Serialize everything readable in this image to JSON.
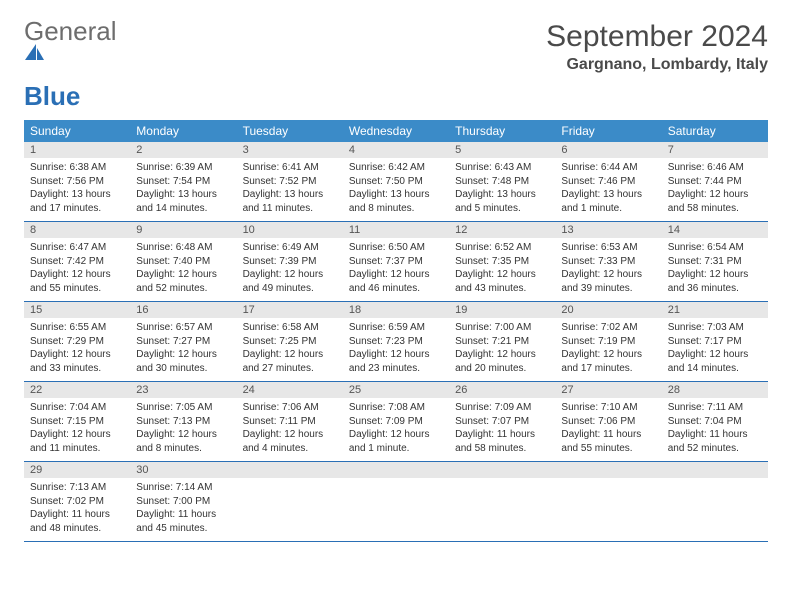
{
  "brand": {
    "part1": "General",
    "part2": "Blue"
  },
  "title": "September 2024",
  "location": "Gargnano, Lombardy, Italy",
  "colors": {
    "header_bar": "#3b8bc8",
    "week_border": "#2a6fb5",
    "daynum_bg": "#e7e7e7",
    "text": "#333333",
    "logo_gray": "#6d6d6d",
    "logo_blue": "#2a6fb5"
  },
  "daysOfWeek": [
    "Sunday",
    "Monday",
    "Tuesday",
    "Wednesday",
    "Thursday",
    "Friday",
    "Saturday"
  ],
  "weeks": [
    [
      {
        "num": "1",
        "sunrise": "Sunrise: 6:38 AM",
        "sunset": "Sunset: 7:56 PM",
        "day1": "Daylight: 13 hours",
        "day2": "and 17 minutes."
      },
      {
        "num": "2",
        "sunrise": "Sunrise: 6:39 AM",
        "sunset": "Sunset: 7:54 PM",
        "day1": "Daylight: 13 hours",
        "day2": "and 14 minutes."
      },
      {
        "num": "3",
        "sunrise": "Sunrise: 6:41 AM",
        "sunset": "Sunset: 7:52 PM",
        "day1": "Daylight: 13 hours",
        "day2": "and 11 minutes."
      },
      {
        "num": "4",
        "sunrise": "Sunrise: 6:42 AM",
        "sunset": "Sunset: 7:50 PM",
        "day1": "Daylight: 13 hours",
        "day2": "and 8 minutes."
      },
      {
        "num": "5",
        "sunrise": "Sunrise: 6:43 AM",
        "sunset": "Sunset: 7:48 PM",
        "day1": "Daylight: 13 hours",
        "day2": "and 5 minutes."
      },
      {
        "num": "6",
        "sunrise": "Sunrise: 6:44 AM",
        "sunset": "Sunset: 7:46 PM",
        "day1": "Daylight: 13 hours",
        "day2": "and 1 minute."
      },
      {
        "num": "7",
        "sunrise": "Sunrise: 6:46 AM",
        "sunset": "Sunset: 7:44 PM",
        "day1": "Daylight: 12 hours",
        "day2": "and 58 minutes."
      }
    ],
    [
      {
        "num": "8",
        "sunrise": "Sunrise: 6:47 AM",
        "sunset": "Sunset: 7:42 PM",
        "day1": "Daylight: 12 hours",
        "day2": "and 55 minutes."
      },
      {
        "num": "9",
        "sunrise": "Sunrise: 6:48 AM",
        "sunset": "Sunset: 7:40 PM",
        "day1": "Daylight: 12 hours",
        "day2": "and 52 minutes."
      },
      {
        "num": "10",
        "sunrise": "Sunrise: 6:49 AM",
        "sunset": "Sunset: 7:39 PM",
        "day1": "Daylight: 12 hours",
        "day2": "and 49 minutes."
      },
      {
        "num": "11",
        "sunrise": "Sunrise: 6:50 AM",
        "sunset": "Sunset: 7:37 PM",
        "day1": "Daylight: 12 hours",
        "day2": "and 46 minutes."
      },
      {
        "num": "12",
        "sunrise": "Sunrise: 6:52 AM",
        "sunset": "Sunset: 7:35 PM",
        "day1": "Daylight: 12 hours",
        "day2": "and 43 minutes."
      },
      {
        "num": "13",
        "sunrise": "Sunrise: 6:53 AM",
        "sunset": "Sunset: 7:33 PM",
        "day1": "Daylight: 12 hours",
        "day2": "and 39 minutes."
      },
      {
        "num": "14",
        "sunrise": "Sunrise: 6:54 AM",
        "sunset": "Sunset: 7:31 PM",
        "day1": "Daylight: 12 hours",
        "day2": "and 36 minutes."
      }
    ],
    [
      {
        "num": "15",
        "sunrise": "Sunrise: 6:55 AM",
        "sunset": "Sunset: 7:29 PM",
        "day1": "Daylight: 12 hours",
        "day2": "and 33 minutes."
      },
      {
        "num": "16",
        "sunrise": "Sunrise: 6:57 AM",
        "sunset": "Sunset: 7:27 PM",
        "day1": "Daylight: 12 hours",
        "day2": "and 30 minutes."
      },
      {
        "num": "17",
        "sunrise": "Sunrise: 6:58 AM",
        "sunset": "Sunset: 7:25 PM",
        "day1": "Daylight: 12 hours",
        "day2": "and 27 minutes."
      },
      {
        "num": "18",
        "sunrise": "Sunrise: 6:59 AM",
        "sunset": "Sunset: 7:23 PM",
        "day1": "Daylight: 12 hours",
        "day2": "and 23 minutes."
      },
      {
        "num": "19",
        "sunrise": "Sunrise: 7:00 AM",
        "sunset": "Sunset: 7:21 PM",
        "day1": "Daylight: 12 hours",
        "day2": "and 20 minutes."
      },
      {
        "num": "20",
        "sunrise": "Sunrise: 7:02 AM",
        "sunset": "Sunset: 7:19 PM",
        "day1": "Daylight: 12 hours",
        "day2": "and 17 minutes."
      },
      {
        "num": "21",
        "sunrise": "Sunrise: 7:03 AM",
        "sunset": "Sunset: 7:17 PM",
        "day1": "Daylight: 12 hours",
        "day2": "and 14 minutes."
      }
    ],
    [
      {
        "num": "22",
        "sunrise": "Sunrise: 7:04 AM",
        "sunset": "Sunset: 7:15 PM",
        "day1": "Daylight: 12 hours",
        "day2": "and 11 minutes."
      },
      {
        "num": "23",
        "sunrise": "Sunrise: 7:05 AM",
        "sunset": "Sunset: 7:13 PM",
        "day1": "Daylight: 12 hours",
        "day2": "and 8 minutes."
      },
      {
        "num": "24",
        "sunrise": "Sunrise: 7:06 AM",
        "sunset": "Sunset: 7:11 PM",
        "day1": "Daylight: 12 hours",
        "day2": "and 4 minutes."
      },
      {
        "num": "25",
        "sunrise": "Sunrise: 7:08 AM",
        "sunset": "Sunset: 7:09 PM",
        "day1": "Daylight: 12 hours",
        "day2": "and 1 minute."
      },
      {
        "num": "26",
        "sunrise": "Sunrise: 7:09 AM",
        "sunset": "Sunset: 7:07 PM",
        "day1": "Daylight: 11 hours",
        "day2": "and 58 minutes."
      },
      {
        "num": "27",
        "sunrise": "Sunrise: 7:10 AM",
        "sunset": "Sunset: 7:06 PM",
        "day1": "Daylight: 11 hours",
        "day2": "and 55 minutes."
      },
      {
        "num": "28",
        "sunrise": "Sunrise: 7:11 AM",
        "sunset": "Sunset: 7:04 PM",
        "day1": "Daylight: 11 hours",
        "day2": "and 52 minutes."
      }
    ],
    [
      {
        "num": "29",
        "sunrise": "Sunrise: 7:13 AM",
        "sunset": "Sunset: 7:02 PM",
        "day1": "Daylight: 11 hours",
        "day2": "and 48 minutes."
      },
      {
        "num": "30",
        "sunrise": "Sunrise: 7:14 AM",
        "sunset": "Sunset: 7:00 PM",
        "day1": "Daylight: 11 hours",
        "day2": "and 45 minutes."
      },
      null,
      null,
      null,
      null,
      null
    ]
  ]
}
